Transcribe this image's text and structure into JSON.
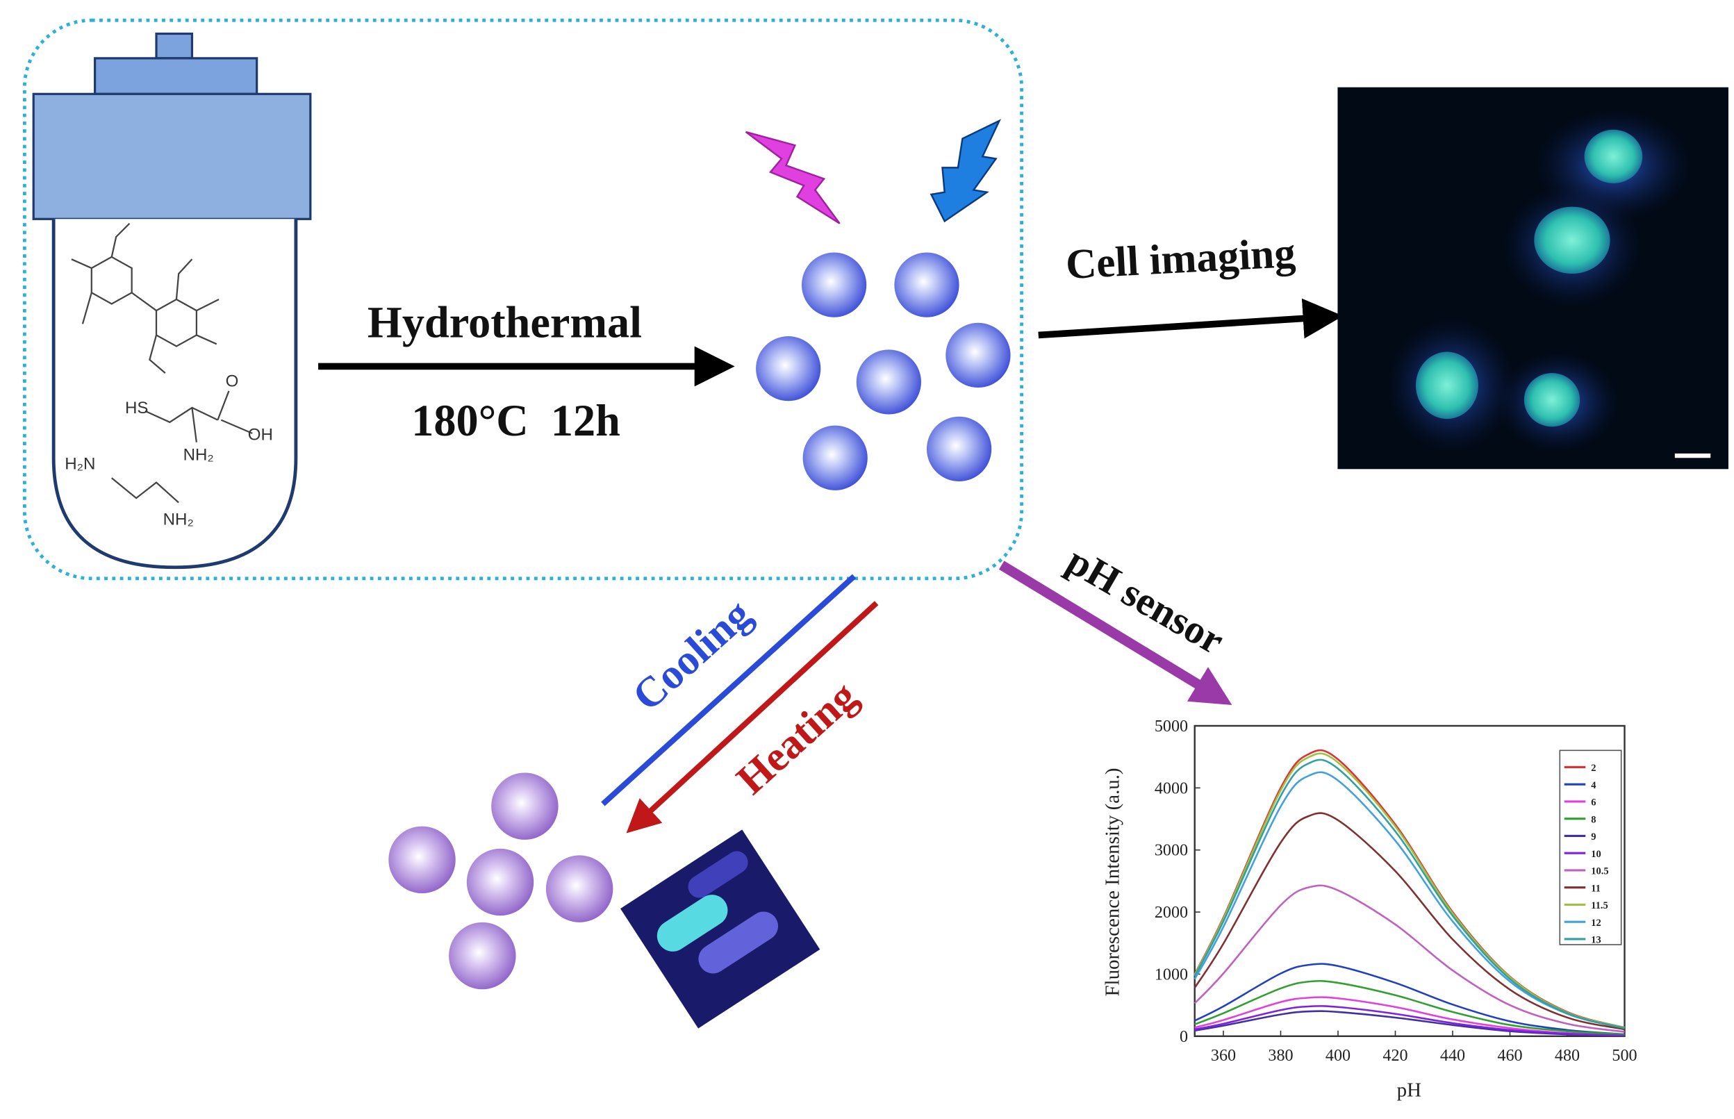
{
  "reactor": {
    "labels": [
      "HS",
      "O",
      "OH",
      "NH₂",
      "H₂N",
      "NH₂"
    ]
  },
  "synthesis": {
    "method": "Hydrothermal",
    "conditions": "180°C  12h"
  },
  "applications": {
    "imaging": "Cell imaging",
    "sensing": "pH sensor"
  },
  "thermal": {
    "cooling": "Cooling",
    "heating": "Heating"
  },
  "chart_data": {
    "type": "line",
    "x_label": "pH",
    "y_label": "Fluorescence Intensity (a.u.)",
    "x": [
      350,
      360,
      380,
      390,
      400,
      420,
      440,
      460,
      480,
      500
    ],
    "xlim": [
      350,
      500
    ],
    "xticks": [
      360,
      380,
      400,
      420,
      440,
      460,
      480,
      500
    ],
    "ylim": [
      0,
      5000
    ],
    "yticks": [
      0,
      1000,
      2000,
      3000,
      4000,
      5000
    ],
    "series": [
      {
        "name": "2",
        "color": "#e03030",
        "values": [
          1000,
          1910,
          4000,
          4550,
          4460,
          3410,
          2000,
          960,
          390,
          140
        ]
      },
      {
        "name": "4",
        "color": "#2040c0",
        "values": [
          250,
          480,
          1010,
          1150,
          1130,
          860,
          510,
          240,
          100,
          30
        ]
      },
      {
        "name": "6",
        "color": "#e040e0",
        "values": [
          140,
          260,
          550,
          620,
          610,
          470,
          270,
          130,
          50,
          20
        ]
      },
      {
        "name": "8",
        "color": "#30a030",
        "values": [
          190,
          370,
          770,
          880,
          860,
          660,
          390,
          180,
          80,
          30
        ]
      },
      {
        "name": "9",
        "color": "#4030a0",
        "values": [
          90,
          170,
          350,
          400,
          390,
          300,
          180,
          80,
          30,
          10
        ]
      },
      {
        "name": "10",
        "color": "#8020e0",
        "values": [
          110,
          200,
          420,
          480,
          470,
          360,
          210,
          100,
          40,
          10
        ]
      },
      {
        "name": "10.5",
        "color": "#c060c0",
        "values": [
          530,
          1010,
          2110,
          2400,
          2350,
          1800,
          1060,
          500,
          200,
          70
        ]
      },
      {
        "name": "11",
        "color": "#803030",
        "values": [
          780,
          1490,
          3120,
          3550,
          3480,
          2660,
          1560,
          750,
          300,
          110
        ]
      },
      {
        "name": "11.5",
        "color": "#a0c040",
        "values": [
          990,
          1890,
          3960,
          4500,
          4410,
          3380,
          1980,
          950,
          380,
          140
        ]
      },
      {
        "name": "12",
        "color": "#40a0e0",
        "values": [
          920,
          1760,
          3700,
          4200,
          4120,
          3150,
          1850,
          880,
          360,
          130
        ]
      },
      {
        "name": "13",
        "color": "#30a0a0",
        "values": [
          970,
          1850,
          3870,
          4400,
          4310,
          3300,
          1940,
          920,
          370,
          130
        ]
      }
    ]
  }
}
